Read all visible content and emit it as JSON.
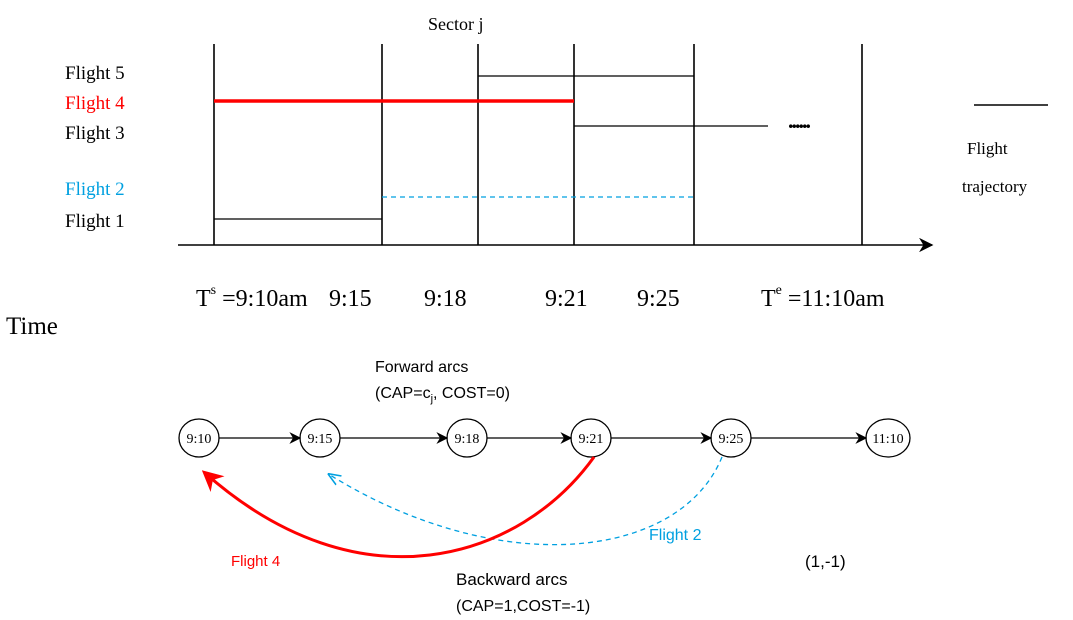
{
  "title": "Sector j",
  "flights": [
    {
      "label": "Flight 5",
      "color": "#000000"
    },
    {
      "label": "Flight 4",
      "color": "#ff0000"
    },
    {
      "label": "Flight 3",
      "color": "#000000"
    },
    {
      "label": "Flight 2",
      "color": "#00a0e0"
    },
    {
      "label": "Flight 1",
      "color": "#000000"
    }
  ],
  "time_axis": {
    "label": "Time",
    "ts_prefix": "T",
    "ts_sup": "s",
    "ts_value": " =9:10am",
    "ticks": [
      "9:15",
      "9:18",
      "9:21",
      "9:25"
    ],
    "te_prefix": "T",
    "te_sup": "e",
    "te_value": " =11:10am",
    "ellipsis": "......"
  },
  "legend": {
    "line1": "Flight",
    "line2": "trajectory"
  },
  "network": {
    "nodes": [
      "9:10",
      "9:15",
      "9:18",
      "9:21",
      "9:25",
      "11:10"
    ],
    "forward_title": "Forward arcs",
    "forward_params_pre": "(CAP=c",
    "forward_params_sub": "j",
    "forward_params_post": ",  COST=0)",
    "backward_title": "Backward arcs",
    "backward_params": "(CAP=1,COST=-1)",
    "arc_label_flight4": "Flight 4",
    "arc_label_flight2": "Flight 2",
    "pair_label": "(1,-1)"
  },
  "colors": {
    "flight4": "#ff0000",
    "flight2": "#00a0e0",
    "default": "#000000"
  }
}
